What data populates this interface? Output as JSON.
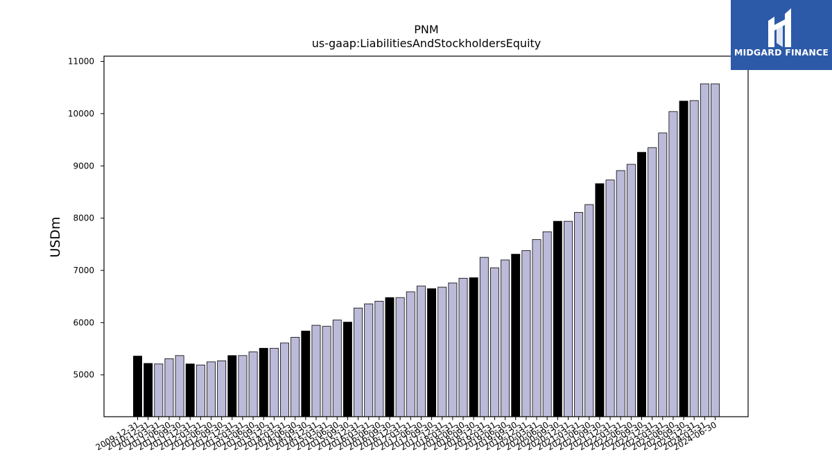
{
  "chart_data": {
    "type": "bar",
    "title": "PNM",
    "subtitle": "us-gaap:LiabilitiesAndStockholdersEquity",
    "xlabel": "",
    "ylabel": "USDm",
    "ylim": [
      4200,
      11100
    ],
    "yticks": [
      5000,
      6000,
      7000,
      8000,
      9000,
      10000,
      11000
    ],
    "grid": false,
    "categories": [
      "2009-12-31",
      "2010-12-31",
      "2011-03-31",
      "2011-06-30",
      "2011-09-30",
      "2011-12-31",
      "2012-03-31",
      "2012-06-30",
      "2012-09-30",
      "2012-12-31",
      "2013-03-31",
      "2013-06-30",
      "2013-09-30",
      "2013-12-31",
      "2014-03-31",
      "2014-06-30",
      "2014-09-30",
      "2014-12-31",
      "2015-03-31",
      "2015-06-30",
      "2015-09-30",
      "2015-12-31",
      "2016-03-31",
      "2016-06-30",
      "2016-09-30",
      "2016-12-31",
      "2017-03-31",
      "2017-06-30",
      "2017-09-30",
      "2017-12-31",
      "2018-03-31",
      "2018-06-30",
      "2018-09-30",
      "2018-12-31",
      "2019-03-31",
      "2019-06-30",
      "2019-09-30",
      "2019-12-31",
      "2020-03-31",
      "2020-06-30",
      "2020-09-30",
      "2020-12-31",
      "2021-03-31",
      "2021-06-30",
      "2021-09-30",
      "2021-12-31",
      "2022-03-31",
      "2022-06-30",
      "2022-09-30",
      "2022-12-31",
      "2023-03-31",
      "2023-06-30",
      "2023-09-30",
      "2023-12-31",
      "2024-03-31",
      "2024-06-30"
    ],
    "values": [
      5360,
      5220,
      5210,
      5310,
      5370,
      5210,
      5190,
      5250,
      5270,
      5370,
      5370,
      5440,
      5510,
      5510,
      5610,
      5720,
      5840,
      5950,
      5930,
      6050,
      6010,
      6280,
      6360,
      6410,
      6480,
      6480,
      6590,
      6700,
      6650,
      6680,
      6760,
      6850,
      6860,
      7250,
      7050,
      7200,
      7310,
      7380,
      7590,
      7740,
      7940,
      7940,
      8110,
      8260,
      8660,
      8730,
      8910,
      9030,
      9260,
      9350,
      9630,
      10040,
      10240,
      10250,
      10570,
      10570
    ],
    "highlight": [
      true,
      true,
      false,
      false,
      false,
      true,
      false,
      false,
      false,
      true,
      false,
      false,
      true,
      false,
      false,
      false,
      true,
      false,
      false,
      false,
      true,
      false,
      false,
      false,
      true,
      false,
      false,
      false,
      true,
      false,
      false,
      false,
      true,
      false,
      false,
      false,
      true,
      false,
      false,
      false,
      true,
      false,
      false,
      false,
      true,
      false,
      false,
      false,
      true,
      false,
      false,
      false,
      true,
      false,
      false,
      false
    ],
    "colors": {
      "normal": "#bcbad9",
      "highlight": "#000000",
      "edge": "#000000"
    }
  },
  "logo": {
    "text": "MIDGARD FINANCE",
    "background": "#2d5aa8",
    "color": "#ffffff"
  }
}
